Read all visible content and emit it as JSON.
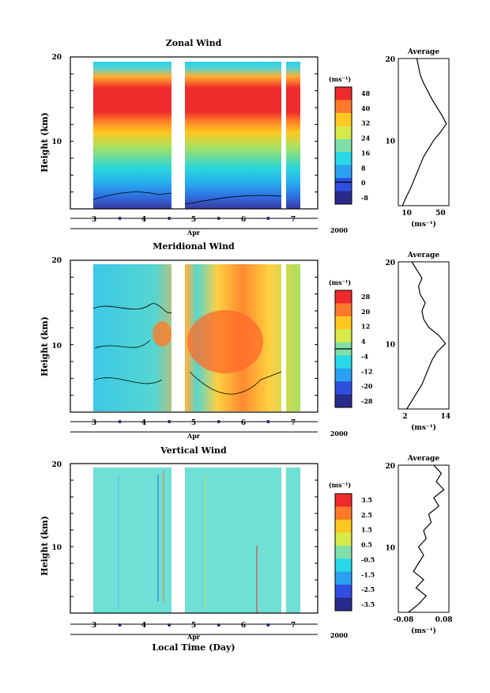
{
  "chart_data": [
    {
      "type": "heatmap",
      "title": "Zonal Wind",
      "ylabel": "Height (km)",
      "xlabel": "Apr",
      "year": "2000",
      "xlim": [
        2.5,
        7.5
      ],
      "ylim": [
        2,
        20
      ],
      "x_ticks": [
        "3",
        "4",
        "5",
        "6",
        "7"
      ],
      "y_ticks": [
        "20",
        "10"
      ],
      "data_gaps_day": [
        [
          2.5,
          2.97
        ],
        [
          4.58,
          4.73
        ],
        [
          6.58,
          6.65
        ],
        [
          7.3,
          7.5
        ]
      ],
      "colorbar": {
        "unit": "(ms⁻¹)",
        "levels": [
          "48",
          "40",
          "32",
          "24",
          "16",
          "8",
          "0",
          "-8"
        ],
        "min": -12,
        "max": 52,
        "zero_line": 0
      },
      "average": {
        "title": "Average",
        "unit": "(ms⁻¹)",
        "x_ticks": [
          "10",
          "50"
        ],
        "xlim": [
          0,
          60
        ],
        "y_ticks": [
          "20",
          "10"
        ],
        "height_km": [
          2,
          3,
          4,
          5,
          6,
          7,
          8,
          9,
          10,
          11,
          12,
          13,
          14,
          15,
          16,
          17,
          18,
          19,
          20
        ],
        "values": [
          5,
          9,
          14,
          18,
          22,
          26,
          30,
          36,
          42,
          50,
          57,
          52,
          46,
          40,
          35,
          30,
          26,
          24,
          22
        ]
      }
    },
    {
      "type": "heatmap",
      "title": "Meridional Wind",
      "ylabel": "Height (km)",
      "xlabel": "Apr",
      "year": "2000",
      "xlim": [
        2.5,
        7.5
      ],
      "ylim": [
        2,
        20
      ],
      "x_ticks": [
        "3",
        "4",
        "5",
        "6",
        "7"
      ],
      "y_ticks": [
        "20",
        "10"
      ],
      "data_gaps_day": [
        [
          2.5,
          2.97
        ],
        [
          4.58,
          4.73
        ],
        [
          6.58,
          6.65
        ],
        [
          7.3,
          7.5
        ]
      ],
      "colorbar": {
        "unit": "(ms⁻¹)",
        "levels": [
          "28",
          "20",
          "12",
          "4",
          "-4",
          "-12",
          "-20",
          "-28"
        ],
        "min": -32,
        "max": 32,
        "zero_line": 0
      },
      "average": {
        "title": "Average",
        "unit": "(ms⁻¹)",
        "x_ticks": [
          "2",
          "14"
        ],
        "xlim": [
          0,
          15
        ],
        "y_ticks": [
          "20",
          "10"
        ],
        "height_km": [
          2,
          3,
          4,
          5,
          6,
          7,
          8,
          9,
          10,
          11,
          12,
          13,
          14,
          15,
          16,
          17,
          18,
          19,
          20
        ],
        "values": [
          2.5,
          4,
          5.5,
          7,
          8,
          9,
          10,
          11.5,
          14,
          12,
          9,
          7.5,
          7,
          8,
          6.5,
          6,
          7,
          5.5,
          4
        ]
      }
    },
    {
      "type": "heatmap",
      "title": "Vertical Wind",
      "ylabel": "Height (km)",
      "xlabel": "Apr",
      "year": "2000",
      "caption": "Local Time (Day)",
      "xlim": [
        2.5,
        7.5
      ],
      "ylim": [
        2,
        20
      ],
      "x_ticks": [
        "3",
        "4",
        "5",
        "6",
        "7"
      ],
      "y_ticks": [
        "20",
        "10"
      ],
      "data_gaps_day": [
        [
          2.5,
          2.97
        ],
        [
          4.58,
          4.73
        ],
        [
          6.58,
          6.65
        ],
        [
          7.3,
          7.5
        ]
      ],
      "colorbar": {
        "unit": "(ms⁻¹)",
        "levels": [
          "3.5",
          "2.5",
          "1.5",
          "0.5",
          "-0.5",
          "-1.5",
          "-2.5",
          "-3.5"
        ],
        "min": -4,
        "max": 4
      },
      "average": {
        "title": "Average",
        "unit": "(ms⁻¹)",
        "x_ticks": [
          "-0.08",
          "0.08"
        ],
        "xlim": [
          -0.1,
          0.1
        ],
        "y_ticks": [
          "20",
          "10"
        ],
        "height_km": [
          2,
          3,
          4,
          5,
          6,
          7,
          8,
          9,
          10,
          11,
          12,
          13,
          14,
          15,
          16,
          17,
          18,
          19,
          20
        ],
        "values": [
          -0.06,
          -0.02,
          0.01,
          -0.03,
          0.0,
          -0.04,
          -0.02,
          0.0,
          -0.02,
          0.01,
          0.0,
          0.03,
          0.02,
          0.06,
          0.04,
          0.08,
          0.05,
          0.07,
          0.04
        ]
      }
    }
  ]
}
